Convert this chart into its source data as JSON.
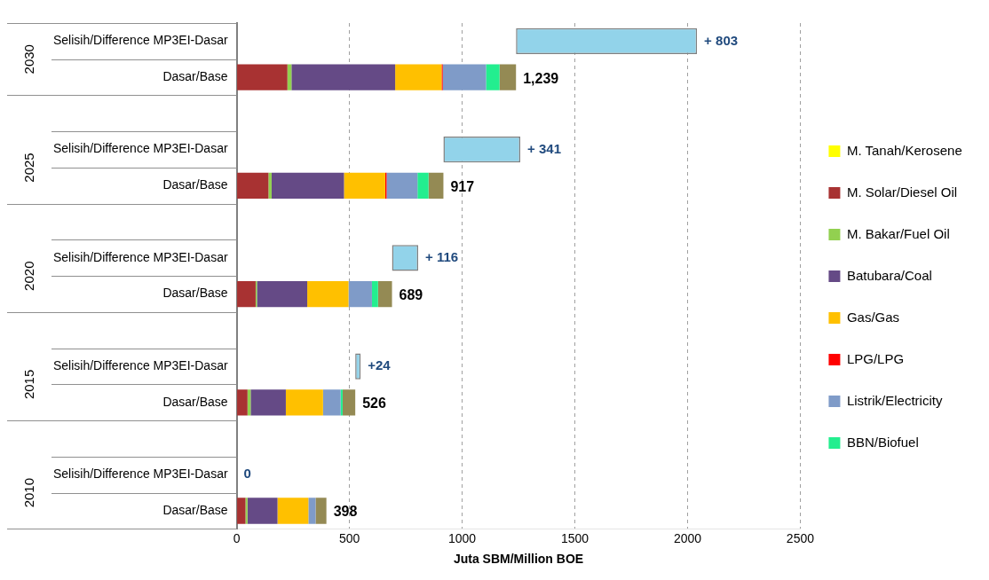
{
  "chart_data": {
    "type": "bar",
    "orientation": "horizontal",
    "stacked": true,
    "xlabel": "Juta SBM/Million BOE",
    "categories": [
      "Selisih/Difference MP3EI-Dasar",
      "Dasar/Base",
      null,
      "Selisih/Difference MP3EI-Dasar",
      "Dasar/Base",
      null,
      "Selisih/Difference MP3EI-Dasar",
      "Dasar/Base",
      null,
      "Selisih/Difference MP3EI-Dasar",
      "Dasar/Base",
      null,
      "Selisih/Difference MP3EI-Dasar",
      "Dasar/Base"
    ],
    "series": [
      {
        "name": "M. Tanah/Kerosene",
        "color": "#ffff00",
        "values": [
          null,
          2,
          null,
          null,
          2,
          null,
          null,
          2,
          null,
          null,
          2,
          null,
          null,
          2
        ]
      },
      {
        "name": "M. Solar/Diesel Oil",
        "color": "#a83232",
        "values": [
          null,
          223,
          null,
          null,
          139,
          null,
          null,
          82,
          null,
          null,
          46,
          null,
          null,
          37
        ]
      },
      {
        "name": "M. Bakar/Fuel Oil",
        "color": "#92d050",
        "values": [
          null,
          18,
          null,
          null,
          14,
          null,
          null,
          6,
          null,
          null,
          14,
          null,
          null,
          9
        ]
      },
      {
        "name": "Batubara/Coal",
        "color": "#654a86",
        "values": [
          null,
          460,
          null,
          null,
          321,
          null,
          null,
          223,
          null,
          null,
          156,
          null,
          null,
          133
        ]
      },
      {
        "name": "Gas/Gas",
        "color": "#ffc000",
        "values": [
          null,
          206,
          null,
          null,
          183,
          null,
          null,
          183,
          null,
          null,
          165,
          null,
          null,
          137
        ]
      },
      {
        "name": "LPG/LPG",
        "color": "#ff0000",
        "values": [
          null,
          5,
          null,
          null,
          6,
          null,
          null,
          null,
          null,
          null,
          null,
          null,
          null,
          null
        ]
      },
      {
        "name": "Listrik/Electricity",
        "color": "#7f9bc8",
        "values": [
          null,
          192,
          null,
          null,
          137,
          null,
          null,
          104,
          null,
          null,
          78,
          null,
          null,
          32
        ]
      },
      {
        "name": "BBN/Biofuel",
        "color": "#23ee8f",
        "values": [
          null,
          60,
          null,
          null,
          49,
          null,
          null,
          27,
          null,
          null,
          9,
          null,
          null,
          null
        ]
      },
      {
        "color": "#948a54",
        "values": [
          null,
          73,
          null,
          null,
          66,
          null,
          null,
          62,
          null,
          null,
          56,
          null,
          null,
          48
        ]
      },
      {
        "color": "#92d3ea",
        "values": [
          803,
          null,
          null,
          341,
          null,
          null,
          116,
          null,
          null,
          24,
          null,
          null,
          0,
          null
        ],
        "base": [
          1239,
          null,
          null,
          917,
          null,
          null,
          689,
          null,
          null,
          526,
          null,
          null,
          null,
          null
        ],
        "value_labels": [
          "+ 803",
          null,
          null,
          "+ 341",
          null,
          null,
          "+ 116",
          null,
          null,
          "+24",
          null,
          null,
          "0",
          null
        ]
      }
    ],
    "totals": [
      null,
      "1,239",
      null,
      null,
      "917",
      null,
      null,
      "689",
      null,
      null,
      "526",
      null,
      null,
      "398"
    ],
    "annotations": [
      "2030",
      "2025",
      "2020",
      "2015",
      "2010"
    ],
    "xlim": [
      0,
      2500
    ],
    "xticks": [
      0,
      500,
      1000,
      1500,
      2000,
      2500
    ],
    "grid": "x",
    "legend": "right"
  }
}
